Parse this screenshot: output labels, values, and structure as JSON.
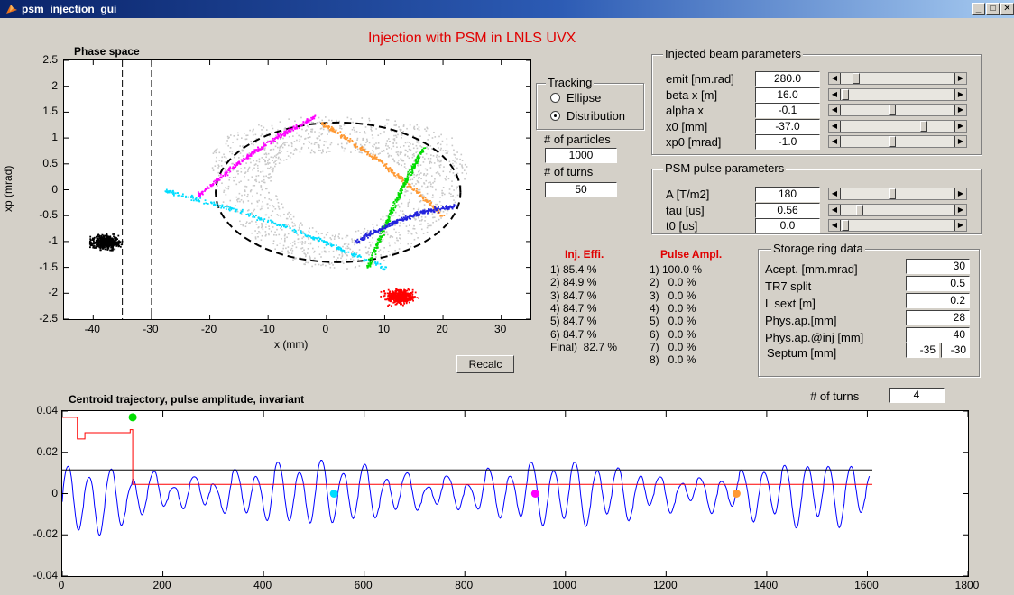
{
  "window": {
    "title": "psm_injection_gui"
  },
  "header": {
    "title": "Injection  with PSM in LNLS UVX"
  },
  "phase_plot": {
    "title": "Phase space",
    "xlabel": "x (mm)",
    "ylabel": "xp (mrad)",
    "xticks": [
      "-40",
      "-30",
      "-20",
      "-10",
      "0",
      "10",
      "20",
      "30"
    ],
    "yticks": [
      "2.5",
      "2",
      "1.5",
      "1",
      "0.5",
      "0",
      "-0.5",
      "-1",
      "-1.5",
      "-2",
      "-2.5"
    ]
  },
  "tracking": {
    "title": "Tracking",
    "options": [
      {
        "label": "Ellipse",
        "selected": false
      },
      {
        "label": "Distribution",
        "selected": true
      }
    ]
  },
  "particles": {
    "label": "# of particles",
    "value": "1000"
  },
  "turns": {
    "label": "# of turns",
    "value": "50"
  },
  "injected": {
    "title": "Injected beam parameters",
    "rows": [
      {
        "label": "emit [nm.rad]",
        "value": "280.0",
        "pos": 0.12
      },
      {
        "label": "beta x [m]",
        "value": "16.0",
        "pos": 0.02
      },
      {
        "label": "alpha x",
        "value": "-0.1",
        "pos": 0.45
      },
      {
        "label": "x0 [mm]",
        "value": "-37.0",
        "pos": 0.74
      },
      {
        "label": "xp0 [mrad]",
        "value": "-1.0",
        "pos": 0.45
      }
    ]
  },
  "psm": {
    "title": "PSM pulse parameters",
    "rows": [
      {
        "label": "A [T/m2]",
        "value": "180",
        "pos": 0.45
      },
      {
        "label": "tau [us]",
        "value": "0.56",
        "pos": 0.15
      },
      {
        "label": "t0 [us]",
        "value": "0.0",
        "pos": 0.02
      }
    ]
  },
  "ring": {
    "title": "Storage ring data",
    "rows": [
      {
        "label": "Acept.  [mm.mrad]",
        "value": "30"
      },
      {
        "label": "TR7 split",
        "value": "0.5"
      },
      {
        "label": "L sext [m]",
        "value": "0.2"
      },
      {
        "label": "Phys.ap.[mm]",
        "value": "28"
      },
      {
        "label": "Phys.ap.@inj [mm]",
        "value": "40"
      }
    ],
    "septum_label": "Septum [mm]",
    "septum_values": [
      "-35",
      "-30"
    ]
  },
  "efficiency": {
    "title": "Inj. Effi.",
    "lines": [
      "1) 85.4 %",
      "2) 84.9 %",
      "3) 84.7 %",
      "4) 84.7 %",
      "5) 84.7 %",
      "6) 84.7 %",
      "Final)  82.7 %"
    ]
  },
  "pulse": {
    "title": "Pulse Ampl.",
    "lines": [
      "1) 100.0 %",
      "2)   0.0 %",
      "3)   0.0 %",
      "4)   0.0 %",
      "5)   0.0 %",
      "6)   0.0 %",
      "7)   0.0 %",
      "8)   0.0 %"
    ]
  },
  "recalc": {
    "label": "Recalc"
  },
  "bottom": {
    "title": "Centroid trajectory, pulse amplitude, invariant",
    "turns_label": "# of turns",
    "turns_value": "4",
    "xticks": [
      "0",
      "200",
      "400",
      "600",
      "800",
      "1000",
      "1200",
      "1400",
      "1600",
      "1800"
    ],
    "yticks": [
      "0.04",
      "0.02",
      "0",
      "-0.02",
      "-0.04"
    ]
  },
  "colors": {
    "accent_red": "#e00000",
    "title_bar": "#0a246a"
  },
  "chart_data": [
    {
      "type": "scatter",
      "title": "Phase space",
      "xlabel": "x (mm)",
      "ylabel": "xp (mrad)",
      "xlim": [
        -45,
        35
      ],
      "ylim": [
        -2.5,
        2.5
      ],
      "series": [
        {
          "color": "#000000",
          "center": [
            -38,
            -1.0
          ]
        },
        {
          "color": "#ff0000",
          "center": [
            12.5,
            -2.05
          ]
        },
        {
          "color": "#cccccc",
          "center": [
            2,
            -0.05
          ]
        },
        {
          "color": "#ff00ff",
          "from": [
            -22,
            -0.1
          ],
          "to": [
            -2,
            1.42
          ]
        },
        {
          "color": "#ff9933",
          "from": [
            -1,
            1.3
          ],
          "to": [
            20,
            -0.5
          ]
        },
        {
          "color": "#00dd00",
          "from": [
            7,
            -1.5
          ],
          "to": [
            16.5,
            0.8
          ]
        },
        {
          "color": "#00ddff",
          "from": [
            -28,
            0.0
          ],
          "to": [
            10,
            -1.5
          ]
        },
        {
          "color": "#2222dd",
          "from": [
            5,
            -1.0
          ],
          "to": [
            22,
            -0.3
          ]
        }
      ],
      "vlines": [
        -35,
        -30
      ],
      "ellipse": {
        "x0": 2,
        "xp0": -0.05,
        "a": 21,
        "b": 1.35
      }
    },
    {
      "type": "line",
      "title": "Centroid trajectory, pulse amplitude, invariant",
      "xlim": [
        0,
        1800
      ],
      "ylim": [
        -0.04,
        0.04
      ],
      "series": [
        {
          "color": "#0000ff",
          "type": "oscillation"
        },
        {
          "color": "#ff0000",
          "type": "pulse"
        },
        {
          "color": "#000000",
          "type": "invariant",
          "value": 0.0115
        }
      ],
      "markers": [
        {
          "x": 140,
          "y": 0.037,
          "color": "#00dd00"
        },
        {
          "x": 540,
          "y": 0.0,
          "color": "#00ddff"
        },
        {
          "x": 940,
          "y": 0.0,
          "color": "#ff00ff"
        },
        {
          "x": 1340,
          "y": 0.0,
          "color": "#ff9933"
        }
      ]
    }
  ]
}
